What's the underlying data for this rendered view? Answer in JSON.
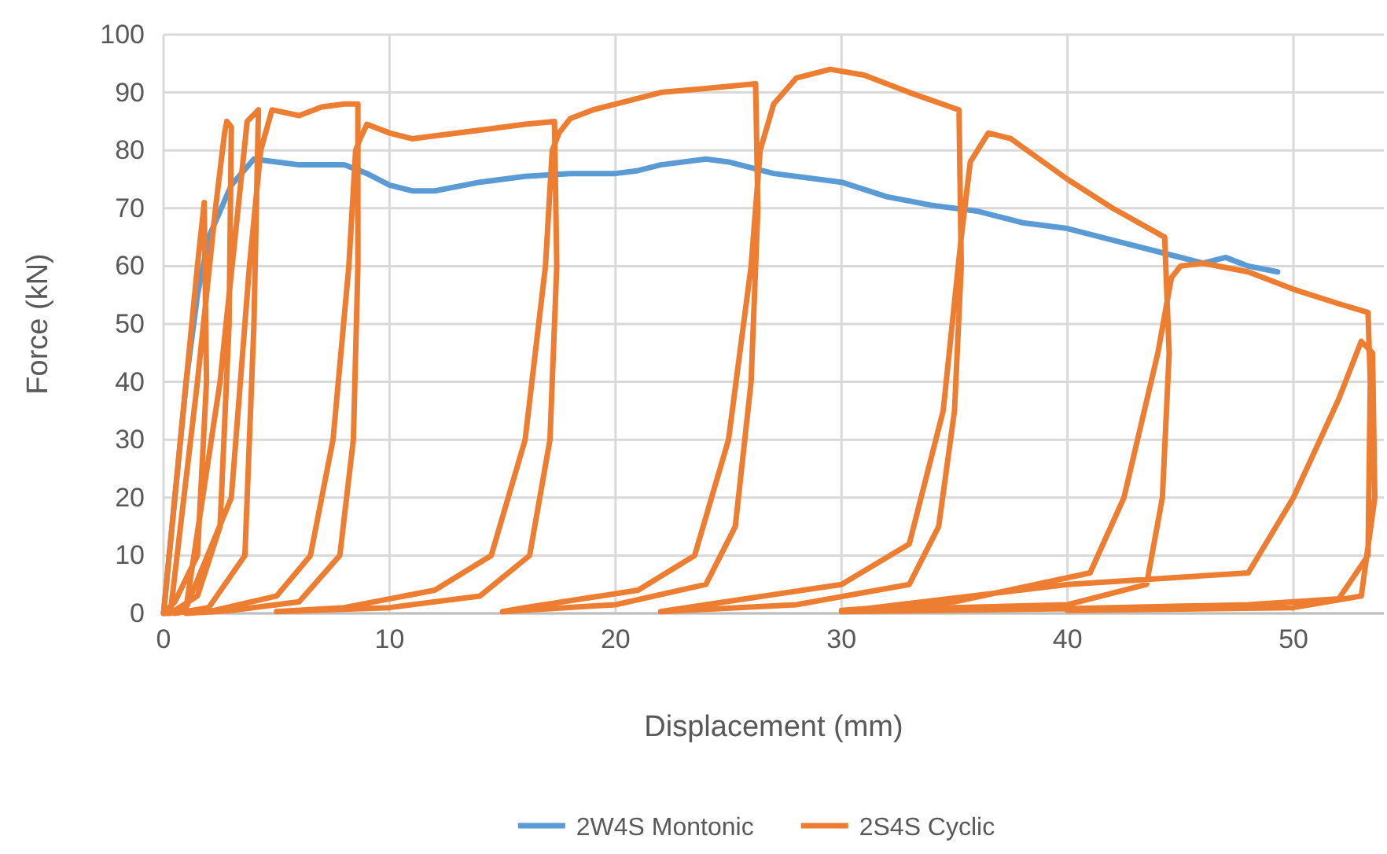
{
  "chart_data": {
    "type": "line",
    "xlabel": "Displacement (mm)",
    "ylabel": "Force (kN)",
    "xlim": [
      0,
      54
    ],
    "xticks": [
      0,
      10,
      20,
      30,
      40,
      50
    ],
    "ylim": [
      0,
      100
    ],
    "yticks": [
      0,
      10,
      20,
      30,
      40,
      50,
      60,
      70,
      80,
      90,
      100
    ],
    "grid": true,
    "legend": "bottom",
    "marker": "none",
    "line_style": "solid",
    "series": [
      {
        "name": "2W4S Montonic",
        "color": "#5b9bd5",
        "x": [
          0,
          0.5,
          1,
          1.5,
          2,
          3,
          4,
          5,
          6,
          8,
          9,
          10,
          11,
          12,
          14,
          16,
          18,
          20,
          21,
          22,
          24,
          25,
          27,
          30,
          32,
          34,
          36,
          38,
          40,
          42,
          44,
          46,
          47,
          48,
          49.3
        ],
        "values": [
          0,
          20,
          40,
          55,
          65,
          74,
          78.5,
          78,
          77.5,
          77.5,
          76,
          74,
          73,
          73,
          74.5,
          75.5,
          76,
          76,
          76.5,
          77.5,
          78.5,
          78,
          76,
          74.5,
          72,
          70.5,
          69.5,
          67.5,
          66.5,
          64.5,
          62.5,
          60.5,
          61.5,
          60,
          59
        ]
      },
      {
        "name": "2S4S Cyclic",
        "color": "#ed7d31",
        "x": [
          0,
          1,
          1.5,
          1.8,
          1.9,
          1.5,
          0.5,
          0,
          0.3,
          1.5,
          2.3,
          2.7,
          2.8,
          3,
          2.9,
          2.5,
          1.5,
          0.5,
          1,
          2.5,
          3.3,
          3.7,
          4.2,
          4,
          3.6,
          2,
          0.5,
          1,
          3,
          3.8,
          4.3,
          4.8,
          6,
          7,
          8,
          8.6,
          8.6,
          8.4,
          7.8,
          6,
          3,
          1,
          2,
          5,
          6.5,
          7.5,
          8.2,
          8.5,
          8.7,
          9,
          10,
          11,
          12,
          14,
          16,
          17.3,
          17.4,
          17.1,
          16.2,
          14,
          10,
          5,
          8,
          12,
          14.5,
          16,
          16.9,
          17.2,
          17.5,
          18,
          19,
          20,
          22,
          24,
          26.2,
          26.3,
          26,
          25.3,
          24,
          20,
          15,
          16,
          21,
          23.5,
          25,
          26,
          26.4,
          27,
          28,
          29.5,
          31,
          33,
          35.2,
          35.3,
          35,
          34.3,
          33,
          28,
          22,
          24,
          30,
          33,
          34.5,
          35.3,
          35.7,
          36.5,
          37.5,
          40,
          42,
          44.3,
          44.5,
          44.2,
          43.5,
          40,
          30,
          35,
          41,
          42.5,
          44,
          44.6,
          45,
          46,
          48,
          50,
          52,
          53.3,
          53.4,
          53.3,
          52,
          48,
          40,
          30,
          40,
          48,
          50,
          52,
          53,
          53.5,
          53.6,
          53,
          50,
          40
        ],
        "values": [
          0,
          40,
          60,
          71,
          40,
          10,
          2,
          0,
          0,
          40,
          70,
          83,
          85,
          84,
          50,
          15,
          3,
          0.5,
          1,
          40,
          70,
          85,
          87,
          50,
          10,
          1,
          0,
          1,
          20,
          60,
          80,
          87,
          86,
          87.5,
          88,
          88,
          60,
          30,
          10,
          2,
          0.5,
          0,
          0.3,
          3,
          10,
          30,
          60,
          80,
          82,
          84.5,
          83,
          82,
          82.5,
          83.5,
          84.5,
          85,
          60,
          30,
          10,
          3,
          1,
          0.3,
          1,
          4,
          10,
          30,
          60,
          80,
          83,
          85.5,
          87,
          88,
          90,
          90.7,
          91.5,
          70,
          40,
          15,
          5,
          1.5,
          0.3,
          1,
          4,
          10,
          30,
          60,
          80,
          88,
          92.5,
          94,
          93,
          90,
          87,
          60,
          35,
          15,
          5,
          1.5,
          0.3,
          1.5,
          5,
          12,
          35,
          65,
          78,
          83,
          82,
          75,
          70,
          65,
          45,
          20,
          5,
          1.5,
          0.5,
          2,
          7,
          20,
          45,
          58,
          60,
          60.5,
          59,
          56,
          53.5,
          52,
          40,
          10,
          2.5,
          1.5,
          0.8,
          0.3,
          5,
          7,
          20,
          37,
          47,
          45,
          20,
          3,
          1,
          0.5
        ]
      }
    ]
  }
}
